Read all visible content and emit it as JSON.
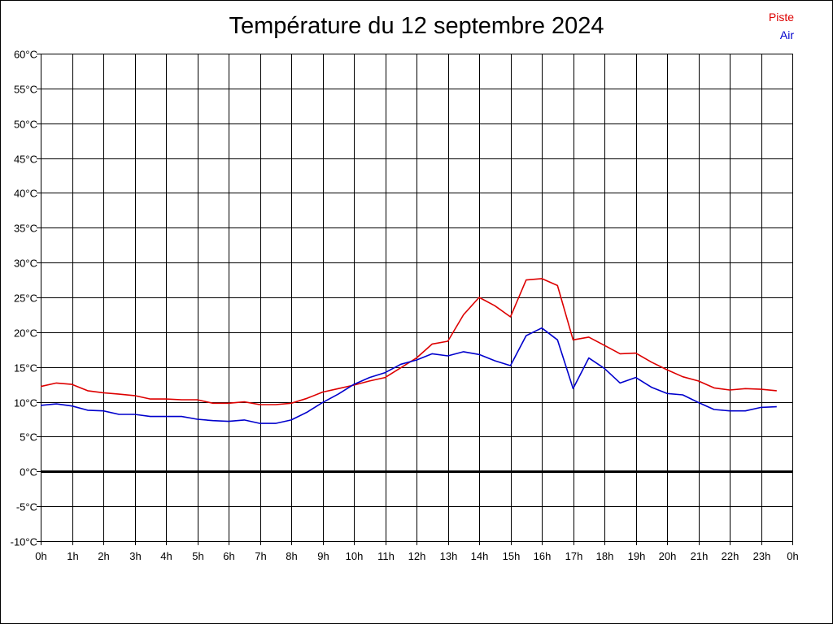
{
  "chart_data": {
    "type": "line",
    "title": "Température du 12 septembre 2024",
    "xlabel": "",
    "ylabel": "",
    "x_tick_labels": [
      "0h",
      "1h",
      "2h",
      "3h",
      "4h",
      "5h",
      "6h",
      "7h",
      "8h",
      "9h",
      "10h",
      "11h",
      "12h",
      "13h",
      "14h",
      "15h",
      "16h",
      "17h",
      "18h",
      "19h",
      "20h",
      "21h",
      "22h",
      "23h",
      "0h"
    ],
    "y_tick_labels": [
      "-10°C",
      "-5°C",
      "0°C",
      "5°C",
      "10°C",
      "15°C",
      "20°C",
      "25°C",
      "30°C",
      "35°C",
      "40°C",
      "45°C",
      "50°C",
      "55°C",
      "60°C"
    ],
    "ylim": [
      -10,
      60
    ],
    "xlim": [
      0,
      24
    ],
    "grid": true,
    "legend_position": "top-right",
    "x": [
      0,
      0.5,
      1,
      1.5,
      2,
      2.5,
      3,
      3.5,
      4,
      4.5,
      5,
      5.5,
      6,
      6.5,
      7,
      7.5,
      8,
      8.5,
      9,
      9.5,
      10,
      10.5,
      11,
      11.5,
      12,
      12.5,
      13,
      13.5,
      14,
      14.5,
      15,
      15.5,
      16,
      16.5,
      17,
      17.5,
      18,
      18.5,
      19,
      19.5,
      20,
      20.5,
      21,
      21.5,
      22,
      22.5,
      23,
      23.5
    ],
    "series": [
      {
        "name": "Piste",
        "color": "#dd0000",
        "values": [
          12.2,
          12.7,
          12.5,
          11.6,
          11.3,
          11.1,
          10.9,
          10.4,
          10.4,
          10.3,
          10.3,
          9.8,
          9.8,
          10.0,
          9.6,
          9.6,
          9.8,
          10.5,
          11.4,
          11.9,
          12.4,
          13.0,
          13.5,
          14.9,
          16.3,
          18.3,
          18.7,
          22.5,
          25.0,
          23.8,
          22.2,
          27.5,
          27.7,
          26.7,
          18.9,
          19.3,
          18.1,
          16.9,
          17.0,
          15.7,
          14.6,
          13.6,
          13.0,
          12.0,
          11.7,
          11.9,
          11.8,
          11.6
        ]
      },
      {
        "name": "Air",
        "color": "#0000cc",
        "values": [
          9.5,
          9.7,
          9.4,
          8.8,
          8.7,
          8.2,
          8.2,
          7.9,
          7.9,
          7.9,
          7.5,
          7.3,
          7.2,
          7.4,
          6.9,
          6.9,
          7.4,
          8.5,
          9.9,
          11.1,
          12.5,
          13.5,
          14.2,
          15.4,
          16.0,
          16.9,
          16.6,
          17.2,
          16.8,
          15.9,
          15.2,
          19.5,
          20.6,
          18.9,
          11.9,
          16.3,
          14.8,
          12.7,
          13.5,
          12.1,
          11.2,
          11.0,
          9.9,
          8.9,
          8.7,
          8.7,
          9.2,
          9.3
        ]
      }
    ]
  }
}
